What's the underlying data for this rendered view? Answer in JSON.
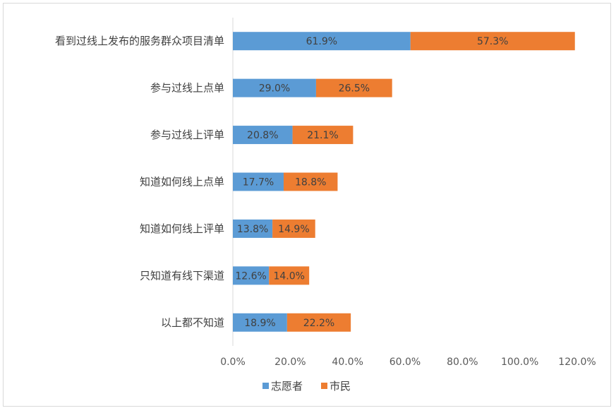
{
  "chart_data": {
    "type": "bar",
    "orientation": "horizontal",
    "stacked": true,
    "categories": [
      "看到过线上发布的服务群众项目清单",
      "参与过线上点单",
      "参与过线上评单",
      "知道如何线上点单",
      "知道如何线上评单",
      "只知道有线下渠道",
      "以上都不知道"
    ],
    "series": [
      {
        "name": "志愿者",
        "color": "#5B9BD5",
        "values": [
          61.9,
          29.0,
          20.8,
          17.7,
          13.8,
          12.6,
          18.9
        ],
        "labels": [
          "61.9%",
          "29.0%",
          "20.8%",
          "17.7%",
          "13.8%",
          "12.6%",
          "18.9%"
        ]
      },
      {
        "name": "市民",
        "color": "#ED7D31",
        "values": [
          57.3,
          26.5,
          21.1,
          18.8,
          14.9,
          14.0,
          22.2
        ],
        "labels": [
          "57.3%",
          "26.5%",
          "21.1%",
          "18.8%",
          "14.9%",
          "14.0%",
          "22.2%"
        ]
      }
    ],
    "xlim": [
      0,
      120
    ],
    "xticks": [
      "0.0%",
      "20.0%",
      "40.0%",
      "60.0%",
      "80.0%",
      "100.0%",
      "120.0%"
    ],
    "grid": false,
    "legend": "bottom"
  }
}
